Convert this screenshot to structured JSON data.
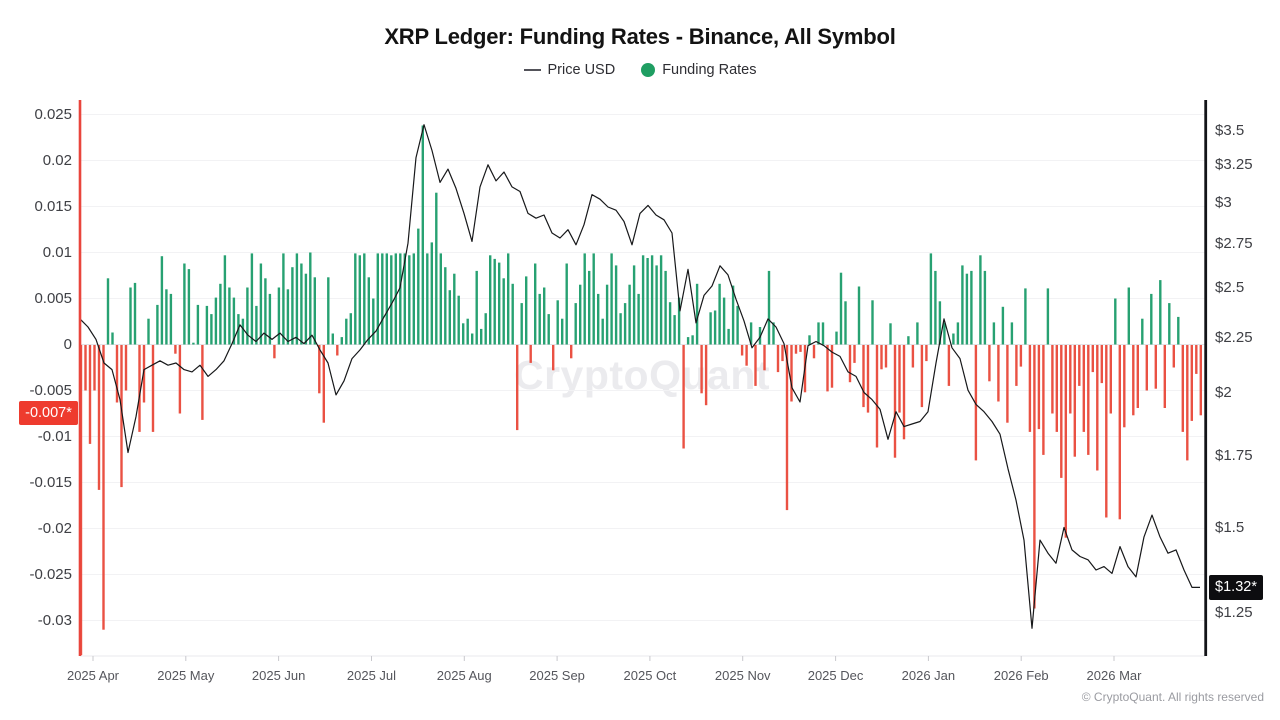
{
  "header": {
    "legend": [
      {
        "label": "Price USD",
        "marker": "line"
      },
      {
        "label": "Funding Rates",
        "marker": "dot"
      }
    ]
  },
  "watermark": "CryptoQuant",
  "footer": {
    "copyright": "© CryptoQuant. All rights reserved"
  },
  "colors": {
    "green": "#27a172",
    "red": "#ea5143",
    "badge_red": "#ee3b2e",
    "line": "#17181a",
    "left_spine": "#e9453c",
    "right_spine": "#131418",
    "grid": "#f2f2f4",
    "zero_line": "#e2e2e6"
  },
  "chart_data": {
    "type": "bar+line",
    "title": "XRP Ledger: Funding Rates - Binance, All Symbol",
    "x_tick_labels": [
      "2025 Apr",
      "2025 May",
      "2025 Jun",
      "2025 Jul",
      "2025 Aug",
      "2025 Sep",
      "2025 Oct",
      "2025 Nov",
      "2025 Dec",
      "2026 Jan",
      "2026 Feb",
      "2026 Mar"
    ],
    "left_axis": {
      "series": "Funding Rates",
      "tick_labels": [
        "0.025",
        "0.02",
        "0.015",
        "0.01",
        "0.005",
        "0",
        "-0.005",
        "-0.01",
        "-0.015",
        "-0.02",
        "-0.025",
        "-0.03"
      ],
      "tick_values": [
        0.025,
        0.02,
        0.015,
        0.01,
        0.005,
        0,
        -0.005,
        -0.01,
        -0.015,
        -0.02,
        -0.025,
        -0.03
      ],
      "highlight": "-0.007*"
    },
    "right_axis": {
      "series": "Price USD",
      "scale": "log",
      "tick_labels": [
        "$3.5",
        "$3.25",
        "$3",
        "$2.75",
        "$2.5",
        "$2.25",
        "$2",
        "$1.75",
        "$1.5",
        "$1.25"
      ],
      "tick_values": [
        3.5,
        3.25,
        3,
        2.75,
        2.5,
        2.25,
        2,
        1.75,
        1.5,
        1.25
      ],
      "highlight": "$1.32*"
    },
    "funding_rates": [
      -0.034,
      -0.005,
      -0.0108,
      -0.005,
      -0.0158,
      -0.031,
      0.0072,
      0.0013,
      -0.0063,
      -0.0155,
      -0.005,
      0.0062,
      0.0067,
      -0.0095,
      -0.0063,
      0.0028,
      -0.0095,
      0.0043,
      0.0096,
      0.006,
      0.0055,
      -0.001,
      -0.0075,
      0.0088,
      0.0082,
      0.0002,
      0.0043,
      -0.0082,
      0.0042,
      0.0033,
      0.0051,
      0.0066,
      0.0097,
      0.0062,
      0.0051,
      0.0033,
      0.0028,
      0.0062,
      0.0099,
      0.0042,
      0.0088,
      0.0072,
      0.0055,
      -0.0015,
      0.0062,
      0.0099,
      0.006,
      0.0084,
      0.0099,
      0.0088,
      0.0077,
      0.01,
      0.0073,
      -0.0053,
      -0.0085,
      0.0073,
      0.0012,
      -0.0012,
      0.0008,
      0.0028,
      0.0034,
      0.0099,
      0.0097,
      0.0099,
      0.0073,
      0.005,
      0.0099,
      0.0099,
      0.0099,
      0.0097,
      0.0099,
      0.0099,
      0.0099,
      0.0097,
      0.0099,
      0.0126,
      0.0238,
      0.0099,
      0.0111,
      0.0165,
      0.0099,
      0.0084,
      0.0059,
      0.0077,
      0.0053,
      0.0023,
      0.0028,
      0.0012,
      0.008,
      0.0017,
      0.0034,
      0.0097,
      0.0093,
      0.0089,
      0.0072,
      0.0099,
      0.0066,
      -0.0093,
      0.0045,
      0.0074,
      -0.002,
      0.0088,
      0.0055,
      0.0062,
      0.0033,
      -0.0028,
      0.0048,
      0.0028,
      0.0088,
      -0.0015,
      0.0045,
      0.0065,
      0.0099,
      0.008,
      0.0099,
      0.0055,
      0.0028,
      0.0065,
      0.0099,
      0.0086,
      0.0034,
      0.0045,
      0.0065,
      0.0086,
      0.0055,
      0.0097,
      0.0094,
      0.0097,
      0.0086,
      0.0097,
      0.008,
      0.0046,
      0.0032,
      0.0051,
      -0.0113,
      0.0008,
      0.001,
      0.0066,
      -0.0053,
      -0.0066,
      0.0035,
      0.0037,
      0.0066,
      0.0051,
      0.0017,
      0.0064,
      0.0042,
      -0.0012,
      -0.0023,
      0.0024,
      -0.0045,
      0.0019,
      -0.0028,
      0.008,
      0.0024,
      -0.003,
      -0.0018,
      -0.018,
      -0.0062,
      -0.001,
      -0.0008,
      -0.0052,
      0.001,
      -0.0015,
      0.0024,
      0.0024,
      -0.0051,
      -0.0047,
      0.0014,
      0.0078,
      0.0047,
      -0.0041,
      -0.002,
      0.0063,
      -0.0068,
      -0.0074,
      0.0048,
      -0.0112,
      -0.0027,
      -0.0025,
      0.0023,
      -0.0123,
      -0.0074,
      -0.0103,
      0.0009,
      -0.0025,
      0.0024,
      -0.0068,
      -0.0018,
      0.0099,
      0.008,
      0.0047,
      0.0024,
      -0.0045,
      0.0012,
      0.0024,
      0.0086,
      0.0077,
      0.008,
      -0.0126,
      0.0097,
      0.008,
      -0.004,
      0.0024,
      -0.0062,
      0.0041,
      -0.0085,
      0.0024,
      -0.0045,
      -0.0024,
      0.0061,
      -0.0095,
      -0.0287,
      -0.0092,
      -0.012,
      0.0061,
      -0.0075,
      -0.0095,
      -0.0145,
      -0.021,
      -0.0075,
      -0.0122,
      -0.0045,
      -0.0095,
      -0.012,
      -0.003,
      -0.0137,
      -0.0042,
      -0.0188,
      -0.0075,
      0.005,
      -0.019,
      -0.009,
      0.0062,
      -0.0077,
      -0.0069,
      0.0028,
      -0.005,
      0.0055,
      -0.0048,
      0.007,
      -0.0069,
      0.0045,
      -0.0025,
      0.003,
      -0.0095,
      -0.0126,
      -0.0083,
      -0.0032,
      -0.0077
    ],
    "price_usd": [
      2.34,
      2.3,
      2.24,
      2.13,
      2.1,
      1.97,
      1.76,
      1.9,
      2.1,
      2.12,
      2.14,
      2.12,
      2.13,
      2.1,
      2.09,
      2.12,
      2.07,
      2.1,
      2.14,
      2.22,
      2.31,
      2.26,
      2.23,
      2.27,
      2.24,
      2.27,
      2.23,
      2.25,
      2.22,
      2.26,
      2.19,
      2.13,
      1.99,
      2.05,
      2.15,
      2.19,
      2.24,
      2.28,
      2.35,
      2.42,
      2.5,
      2.75,
      3.3,
      3.54,
      3.35,
      3.13,
      3.22,
      3.09,
      2.93,
      2.76,
      3.1,
      3.25,
      3.14,
      3.2,
      3.1,
      3.07,
      2.93,
      2.9,
      2.92,
      2.81,
      2.78,
      2.83,
      2.74,
      2.86,
      3.05,
      3.02,
      2.97,
      2.95,
      2.88,
      2.74,
      2.93,
      2.98,
      2.92,
      2.89,
      2.81,
      2.38,
      2.6,
      2.32,
      2.46,
      2.51,
      2.62,
      2.57,
      2.44,
      2.33,
      2.2,
      2.25,
      2.34,
      2.3,
      2.22,
      2.02,
      1.96,
      2.21,
      2.23,
      2.21,
      2.18,
      2.16,
      2.09,
      2.07,
      2.0,
      1.97,
      1.93,
      1.81,
      1.92,
      1.86,
      1.87,
      1.88,
      1.92,
      2.13,
      2.34,
      2.2,
      2.15,
      2.01,
      1.95,
      1.92,
      1.88,
      1.83,
      1.7,
      1.59,
      1.46,
      1.21,
      1.46,
      1.42,
      1.39,
      1.5,
      1.43,
      1.41,
      1.4,
      1.37,
      1.38,
      1.36,
      1.44,
      1.38,
      1.35,
      1.47,
      1.54,
      1.47,
      1.42,
      1.43,
      1.37,
      1.32,
      1.32
    ]
  }
}
